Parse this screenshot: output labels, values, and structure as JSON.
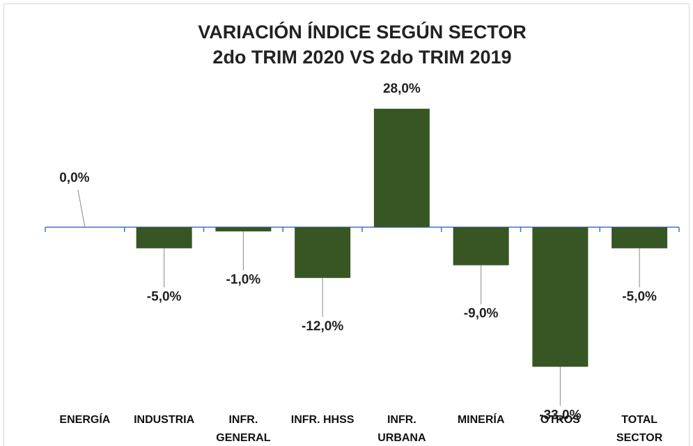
{
  "chart_data": {
    "type": "bar",
    "title": [
      "VARIACIÓN ÍNDICE SEGÚN SECTOR",
      "2do TRIM 2020 VS 2do TRIM  2019"
    ],
    "categories": [
      "ENERGÍA",
      "INDUSTRIA",
      "INFR. GENERAL",
      "INFR. HHSS",
      "INFR. URBANA",
      "MINERÍA",
      "OTROS",
      "TOTAL SECTOR"
    ],
    "values": [
      0,
      -5,
      -1,
      -12,
      28,
      -9,
      -33,
      -5
    ],
    "value_labels": [
      "0,0%",
      "-5,0%",
      "-1,0%",
      "-12,0%",
      "28,0%",
      "-9,0%",
      "-33,0%",
      "-5,0%"
    ],
    "color": "#375623"
  }
}
